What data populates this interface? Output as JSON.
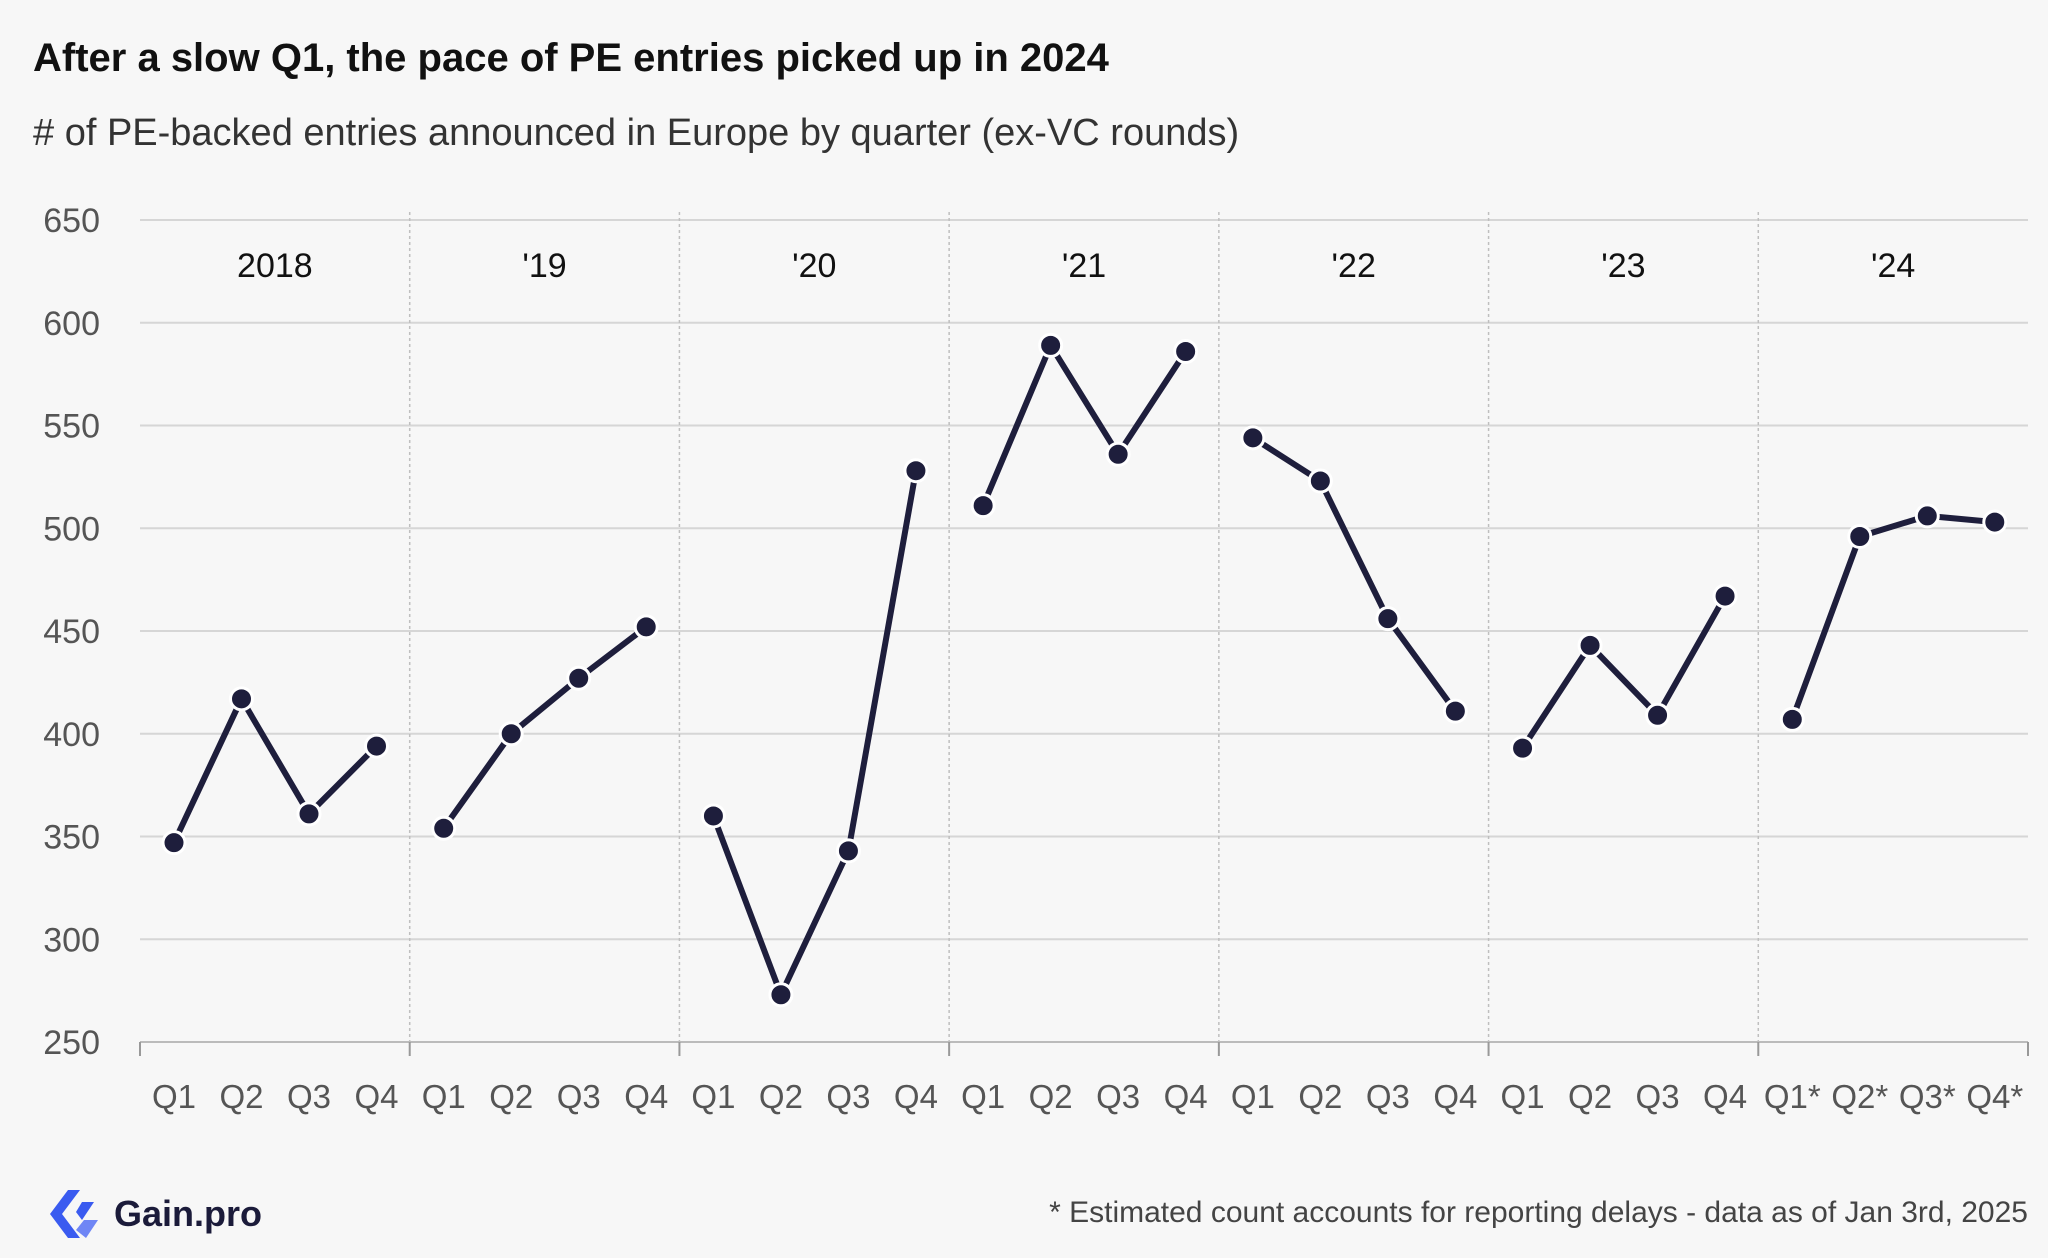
{
  "header": {
    "title": "After a slow Q1, the pace of PE entries picked up in 2024",
    "subtitle": "# of PE-backed entries announced in Europe by quarter (ex-VC rounds)"
  },
  "footer": {
    "brand": "Gain.pro",
    "brand_icon": "gain-pro-logo-icon",
    "footnote": "* Estimated count accounts for reporting delays - data as of Jan 3rd, 2025"
  },
  "colors": {
    "line": "#1e1e3c",
    "grid": "#d6d6d6",
    "background": "#f7f7f7",
    "logo_blue": "#3a5bf0"
  },
  "chart_data": {
    "type": "line",
    "ylim": [
      250,
      650
    ],
    "yticks": [
      250,
      300,
      350,
      400,
      450,
      500,
      550,
      600,
      650
    ],
    "grid": true,
    "groups": [
      {
        "label": "2018",
        "quarters": [
          "Q1",
          "Q2",
          "Q3",
          "Q4"
        ],
        "values": [
          347,
          417,
          361,
          394
        ]
      },
      {
        "label": "'19",
        "quarters": [
          "Q1",
          "Q2",
          "Q3",
          "Q4"
        ],
        "values": [
          354,
          400,
          427,
          452
        ]
      },
      {
        "label": "'20",
        "quarters": [
          "Q1",
          "Q2",
          "Q3",
          "Q4"
        ],
        "values": [
          360,
          273,
          343,
          528
        ]
      },
      {
        "label": "'21",
        "quarters": [
          "Q1",
          "Q2",
          "Q3",
          "Q4"
        ],
        "values": [
          511,
          589,
          536,
          586
        ]
      },
      {
        "label": "'22",
        "quarters": [
          "Q1",
          "Q2",
          "Q3",
          "Q4"
        ],
        "values": [
          544,
          523,
          456,
          411
        ]
      },
      {
        "label": "'23",
        "quarters": [
          "Q1",
          "Q2",
          "Q3",
          "Q4"
        ],
        "values": [
          393,
          443,
          409,
          467
        ]
      },
      {
        "label": "'24",
        "quarters": [
          "Q1*",
          "Q2*",
          "Q3*",
          "Q4*"
        ],
        "values": [
          407,
          496,
          506,
          503
        ]
      }
    ]
  }
}
